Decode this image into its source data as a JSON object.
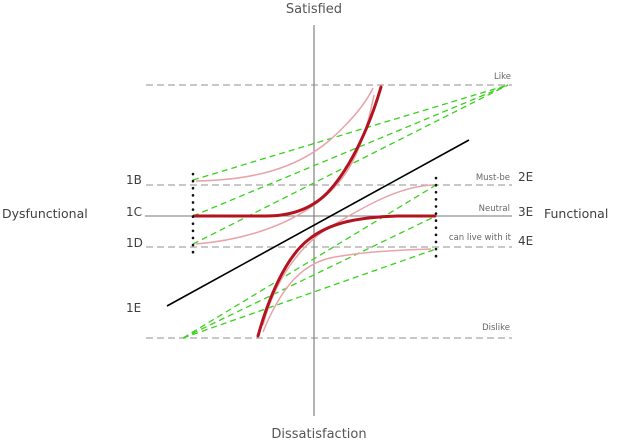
{
  "axes": {
    "top": "Satisfied",
    "bottom": "Dissatisfaction",
    "left": "Dysfunctional",
    "right": "Functional"
  },
  "levels": {
    "like": "Like",
    "must_be": "Must-be",
    "neutral": "Neutral",
    "live_with": "can live with it",
    "dislike": "Dislike"
  },
  "left_codes": {
    "b": "1B",
    "c": "1C",
    "d": "1D",
    "e": "1E"
  },
  "right_codes": {
    "e2": "2E",
    "e3": "3E",
    "e4": "4E"
  },
  "colors": {
    "axis": "#777777",
    "dashed_level": "#a8a8a8",
    "green_dash": "#39d21c",
    "curve_dark": "#b3131e",
    "curve_light": "#e8a3aa",
    "diagonal": "#000000"
  }
}
